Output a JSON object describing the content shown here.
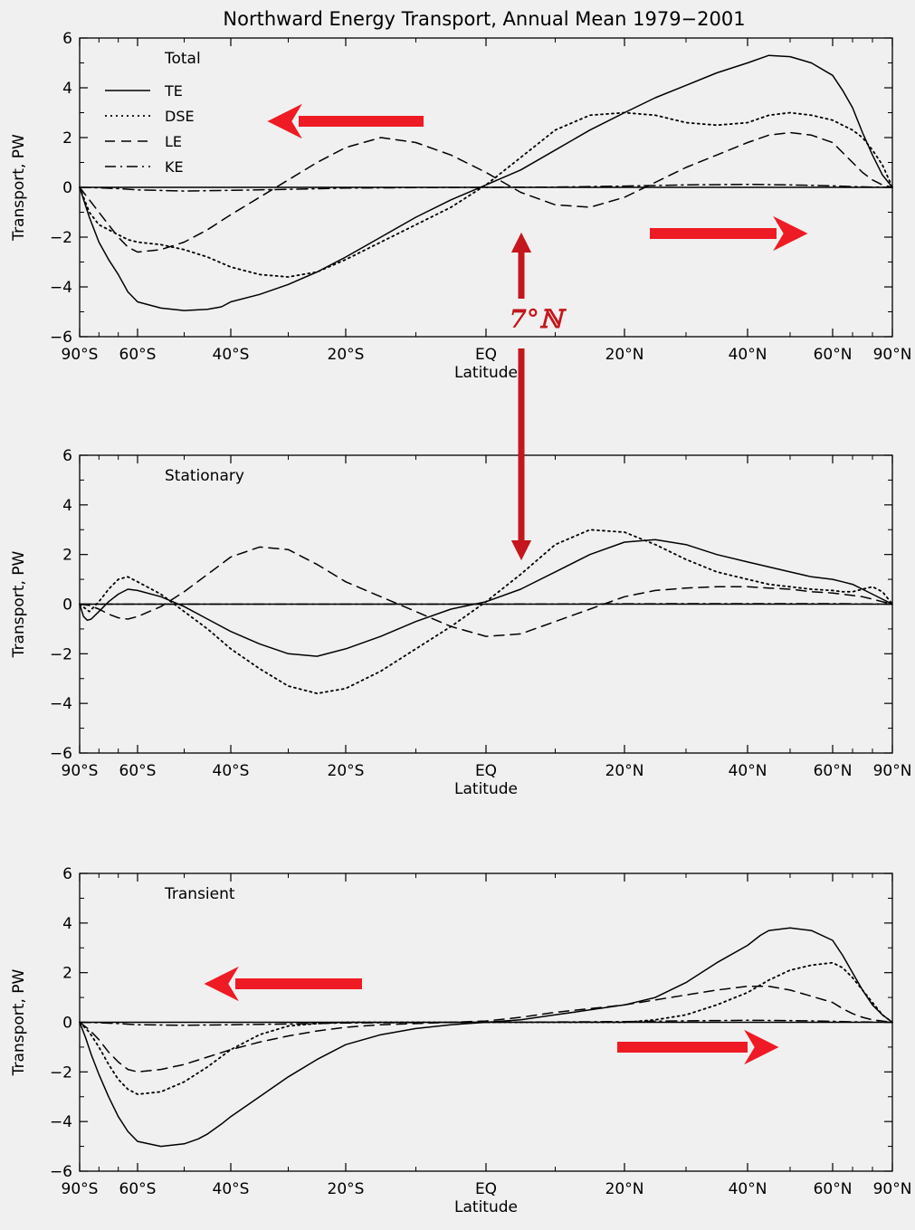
{
  "title": "Northward Energy Transport, Annual Mean 1979−2001",
  "colors": {
    "background": "#f0f0f0",
    "lines": "#000000",
    "arrow": "#ee1b24",
    "arrow_dark": "#c4161c"
  },
  "legend_position": "top-left",
  "annotation": {
    "label": "7°ℕ"
  },
  "chart_data": [
    {
      "type": "line",
      "panel_label": "Total",
      "xlabel": "Latitude",
      "ylabel": "Transport, PW",
      "xlim": [
        -90,
        90
      ],
      "ylim": [
        -6,
        6
      ],
      "xticks": [
        -90,
        -60,
        -40,
        -20,
        0,
        20,
        40,
        60,
        90
      ],
      "xtick_labels": [
        "90°S",
        "60°S",
        "40°S",
        "20°S",
        "EQ",
        "20°N",
        "40°N",
        "60°N",
        "90°N"
      ],
      "yticks": [
        -6,
        -4,
        -2,
        0,
        2,
        4,
        6
      ],
      "grid": false,
      "series": [
        {
          "name": "TE",
          "dash": "solid",
          "x": [
            -90,
            -85,
            -80,
            -75,
            -70,
            -65,
            -60,
            -55,
            -50,
            -45,
            -42,
            -40,
            -35,
            -30,
            -25,
            -20,
            -15,
            -10,
            -5,
            0,
            5,
            10,
            15,
            20,
            25,
            30,
            35,
            40,
            45,
            50,
            55,
            60,
            65,
            70,
            75,
            80,
            85,
            90
          ],
          "y": [
            0,
            -1.2,
            -2.2,
            -2.9,
            -3.5,
            -4.2,
            -4.6,
            -4.85,
            -4.95,
            -4.9,
            -4.8,
            -4.6,
            -4.3,
            -3.9,
            -3.4,
            -2.8,
            -2.0,
            -1.2,
            -0.5,
            0.1,
            0.7,
            1.5,
            2.3,
            3.0,
            3.6,
            4.1,
            4.6,
            5.0,
            5.3,
            5.25,
            5.0,
            4.5,
            3.9,
            3.2,
            2.2,
            1.3,
            0.5,
            0
          ]
        },
        {
          "name": "DSE",
          "dash": "dotted",
          "x": [
            -90,
            -85,
            -80,
            -75,
            -70,
            -65,
            -60,
            -55,
            -50,
            -45,
            -40,
            -35,
            -30,
            -25,
            -20,
            -15,
            -10,
            -5,
            0,
            5,
            10,
            15,
            20,
            25,
            30,
            35,
            40,
            45,
            50,
            55,
            60,
            65,
            70,
            75,
            80,
            85,
            90
          ],
          "y": [
            0,
            -1.0,
            -1.5,
            -1.7,
            -1.9,
            -2.1,
            -2.2,
            -2.3,
            -2.5,
            -2.8,
            -3.2,
            -3.5,
            -3.6,
            -3.4,
            -2.9,
            -2.2,
            -1.5,
            -0.8,
            0.1,
            1.2,
            2.3,
            2.9,
            3.0,
            2.9,
            2.6,
            2.5,
            2.6,
            2.9,
            3.0,
            2.9,
            2.7,
            2.5,
            2.3,
            2.0,
            1.5,
            0.9,
            0
          ]
        },
        {
          "name": "LE",
          "dash": "dashed",
          "x": [
            -90,
            -85,
            -80,
            -75,
            -70,
            -65,
            -60,
            -55,
            -50,
            -45,
            -40,
            -35,
            -30,
            -25,
            -20,
            -15,
            -10,
            -5,
            0,
            5,
            10,
            15,
            20,
            25,
            30,
            35,
            40,
            45,
            50,
            55,
            60,
            65,
            70,
            75,
            80,
            85,
            90
          ],
          "y": [
            0,
            -0.5,
            -1.0,
            -1.5,
            -2.0,
            -2.4,
            -2.6,
            -2.5,
            -2.2,
            -1.7,
            -1.1,
            -0.4,
            0.3,
            1.0,
            1.6,
            2.0,
            1.8,
            1.3,
            0.6,
            -0.2,
            -0.7,
            -0.8,
            -0.4,
            0.2,
            0.8,
            1.3,
            1.8,
            2.1,
            2.2,
            2.1,
            1.8,
            1.4,
            1.0,
            0.6,
            0.3,
            0.1,
            0
          ]
        },
        {
          "name": "KE",
          "dash": "dashdot",
          "x": [
            -90,
            -80,
            -70,
            -60,
            -50,
            -40,
            -30,
            -20,
            -10,
            0,
            10,
            20,
            30,
            40,
            50,
            60,
            70,
            80,
            90
          ],
          "y": [
            0,
            -0.02,
            -0.05,
            -0.1,
            -0.15,
            -0.12,
            -0.08,
            -0.03,
            -0.01,
            0,
            0.01,
            0.05,
            0.1,
            0.12,
            0.1,
            0.06,
            0.03,
            0.01,
            0
          ]
        }
      ]
    },
    {
      "type": "line",
      "panel_label": "Stationary",
      "xlabel": "Latitude",
      "ylabel": "Transport, PW",
      "xlim": [
        -90,
        90
      ],
      "ylim": [
        -6,
        6
      ],
      "xticks": [
        -90,
        -60,
        -40,
        -20,
        0,
        20,
        40,
        60,
        90
      ],
      "xtick_labels": [
        "90°S",
        "60°S",
        "40°S",
        "20°S",
        "EQ",
        "20°N",
        "40°N",
        "60°N",
        "90°N"
      ],
      "yticks": [
        -6,
        -4,
        -2,
        0,
        2,
        4,
        6
      ],
      "grid": false,
      "series": [
        {
          "name": "TE",
          "dash": "solid",
          "x": [
            -90,
            -88,
            -86,
            -84,
            -80,
            -75,
            -70,
            -65,
            -60,
            -55,
            -50,
            -45,
            -40,
            -35,
            -30,
            -25,
            -20,
            -15,
            -10,
            -5,
            0,
            5,
            10,
            15,
            20,
            25,
            30,
            35,
            40,
            45,
            50,
            55,
            60,
            65,
            70,
            75,
            80,
            85,
            90
          ],
          "y": [
            0,
            -0.5,
            -0.65,
            -0.6,
            -0.3,
            0.1,
            0.4,
            0.6,
            0.55,
            0.3,
            -0.1,
            -0.6,
            -1.1,
            -1.6,
            -2.0,
            -2.1,
            -1.8,
            -1.3,
            -0.7,
            -0.2,
            0.1,
            0.6,
            1.3,
            2.0,
            2.5,
            2.6,
            2.4,
            2.0,
            1.7,
            1.5,
            1.3,
            1.1,
            1.0,
            0.9,
            0.8,
            0.6,
            0.4,
            0.2,
            0
          ]
        },
        {
          "name": "DSE",
          "dash": "dotted",
          "x": [
            -90,
            -85,
            -80,
            -75,
            -70,
            -65,
            -60,
            -55,
            -50,
            -45,
            -40,
            -35,
            -30,
            -25,
            -20,
            -15,
            -10,
            -5,
            0,
            5,
            10,
            15,
            20,
            25,
            30,
            35,
            40,
            45,
            50,
            55,
            60,
            65,
            70,
            75,
            80,
            85,
            90
          ],
          "y": [
            0,
            -0.3,
            0.1,
            0.6,
            1.0,
            1.1,
            0.9,
            0.4,
            -0.3,
            -1.0,
            -1.8,
            -2.6,
            -3.3,
            -3.6,
            -3.4,
            -2.7,
            -1.8,
            -0.9,
            0.1,
            1.2,
            2.4,
            3.0,
            2.9,
            2.4,
            1.8,
            1.3,
            1.0,
            0.8,
            0.7,
            0.6,
            0.55,
            0.5,
            0.5,
            0.6,
            0.7,
            0.5,
            0
          ]
        },
        {
          "name": "LE",
          "dash": "dashed",
          "x": [
            -90,
            -85,
            -80,
            -75,
            -70,
            -65,
            -60,
            -55,
            -50,
            -45,
            -40,
            -35,
            -30,
            -25,
            -20,
            -15,
            -10,
            -5,
            0,
            5,
            10,
            15,
            20,
            25,
            30,
            35,
            40,
            45,
            50,
            55,
            60,
            65,
            70,
            75,
            80,
            85,
            90
          ],
          "y": [
            0,
            -0.05,
            -0.2,
            -0.4,
            -0.55,
            -0.6,
            -0.5,
            -0.1,
            0.5,
            1.2,
            1.9,
            2.3,
            2.2,
            1.6,
            0.9,
            0.3,
            -0.3,
            -0.9,
            -1.3,
            -1.2,
            -0.7,
            -0.2,
            0.3,
            0.55,
            0.65,
            0.7,
            0.7,
            0.65,
            0.6,
            0.5,
            0.45,
            0.4,
            0.35,
            0.3,
            0.2,
            0.1,
            0
          ]
        },
        {
          "name": "KE",
          "dash": "dashdot",
          "x": [
            -90,
            -60,
            -30,
            0,
            30,
            60,
            90
          ],
          "y": [
            0,
            0,
            0,
            0,
            0.02,
            0.02,
            0
          ]
        }
      ]
    },
    {
      "type": "line",
      "panel_label": "Transient",
      "xlabel": "Latitude",
      "ylabel": "Transport, PW",
      "xlim": [
        -90,
        90
      ],
      "ylim": [
        -6,
        6
      ],
      "xticks": [
        -90,
        -60,
        -40,
        -20,
        0,
        20,
        40,
        60,
        90
      ],
      "xtick_labels": [
        "90°S",
        "60°S",
        "40°S",
        "20°S",
        "EQ",
        "20°N",
        "40°N",
        "60°N",
        "90°N"
      ],
      "yticks": [
        -6,
        -4,
        -2,
        0,
        2,
        4,
        6
      ],
      "grid": false,
      "series": [
        {
          "name": "TE",
          "dash": "solid",
          "x": [
            -90,
            -87,
            -84,
            -80,
            -75,
            -70,
            -65,
            -60,
            -55,
            -50,
            -47,
            -45,
            -42,
            -40,
            -35,
            -30,
            -25,
            -20,
            -15,
            -10,
            -5,
            0,
            5,
            10,
            15,
            20,
            25,
            30,
            35,
            40,
            43,
            45,
            50,
            55,
            60,
            65,
            70,
            75,
            80,
            85,
            90
          ],
          "y": [
            0,
            -0.6,
            -1.3,
            -2.1,
            -3.0,
            -3.8,
            -4.4,
            -4.8,
            -5.0,
            -4.9,
            -4.7,
            -4.5,
            -4.1,
            -3.8,
            -3.0,
            -2.2,
            -1.5,
            -0.9,
            -0.5,
            -0.25,
            -0.1,
            0,
            0.1,
            0.3,
            0.5,
            0.7,
            1.0,
            1.6,
            2.4,
            3.1,
            3.5,
            3.7,
            3.8,
            3.7,
            3.3,
            2.7,
            2.0,
            1.3,
            0.7,
            0.3,
            0
          ]
        },
        {
          "name": "DSE",
          "dash": "dotted",
          "x": [
            -90,
            -85,
            -80,
            -75,
            -70,
            -65,
            -60,
            -55,
            -50,
            -45,
            -40,
            -35,
            -30,
            -25,
            -20,
            -15,
            -10,
            -5,
            0,
            5,
            10,
            15,
            20,
            25,
            30,
            35,
            40,
            45,
            50,
            55,
            60,
            65,
            70,
            75,
            80,
            85,
            90
          ],
          "y": [
            0,
            -0.4,
            -1.0,
            -1.7,
            -2.3,
            -2.7,
            -2.9,
            -2.8,
            -2.4,
            -1.8,
            -1.1,
            -0.5,
            -0.15,
            -0.05,
            0,
            0,
            0,
            0,
            0,
            0,
            0,
            0,
            0,
            0.1,
            0.3,
            0.7,
            1.2,
            1.7,
            2.1,
            2.3,
            2.4,
            2.2,
            1.8,
            1.3,
            0.8,
            0.3,
            0
          ]
        },
        {
          "name": "LE",
          "dash": "dashed",
          "x": [
            -90,
            -85,
            -80,
            -75,
            -70,
            -65,
            -60,
            -55,
            -50,
            -45,
            -40,
            -35,
            -30,
            -25,
            -20,
            -15,
            -10,
            -5,
            0,
            5,
            10,
            15,
            20,
            25,
            30,
            35,
            40,
            45,
            50,
            55,
            60,
            65,
            70,
            75,
            80,
            85,
            90
          ],
          "y": [
            0,
            -0.3,
            -0.7,
            -1.2,
            -1.6,
            -1.9,
            -2.0,
            -1.9,
            -1.7,
            -1.4,
            -1.1,
            -0.8,
            -0.55,
            -0.35,
            -0.2,
            -0.1,
            -0.05,
            0,
            0.05,
            0.2,
            0.4,
            0.55,
            0.7,
            0.9,
            1.1,
            1.3,
            1.45,
            1.45,
            1.3,
            1.05,
            0.8,
            0.55,
            0.35,
            0.2,
            0.1,
            0.05,
            0
          ]
        },
        {
          "name": "KE",
          "dash": "dashdot",
          "x": [
            -90,
            -80,
            -70,
            -60,
            -50,
            -40,
            -30,
            -20,
            -10,
            0,
            10,
            20,
            30,
            40,
            50,
            60,
            70,
            80,
            90
          ],
          "y": [
            0,
            -0.02,
            -0.05,
            -0.1,
            -0.12,
            -0.1,
            -0.07,
            -0.03,
            -0.01,
            0,
            0.01,
            0.03,
            0.06,
            0.08,
            0.07,
            0.04,
            0.02,
            0.01,
            0
          ]
        }
      ]
    }
  ]
}
